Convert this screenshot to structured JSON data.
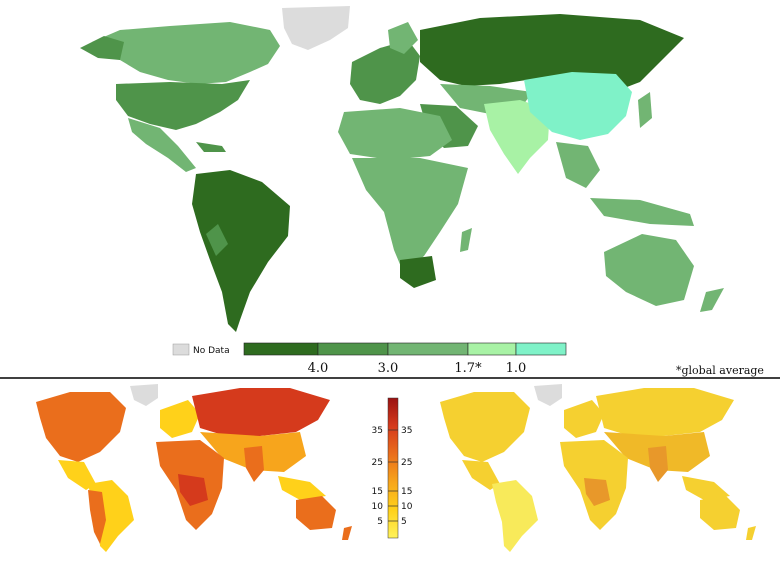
{
  "top_map": {
    "legend": {
      "no_data_label": "No Data",
      "no_data_color": "#dcdcdc",
      "classes": [
        {
          "color": "#2e6b1f"
        },
        {
          "color": "#4f944a"
        },
        {
          "color": "#72b573"
        },
        {
          "color": "#a8f2a5"
        },
        {
          "color": "#7ff2c8"
        }
      ],
      "tick_labels": [
        "4.0",
        "3.0",
        "1.7*",
        "1.0"
      ]
    },
    "footnote": "*global average"
  },
  "bottom_left_map": {
    "legend": {
      "stops": [
        "#fff35c",
        "#ffd11a",
        "#f7a51c",
        "#ea6e1c",
        "#d53a1c",
        "#9b1212"
      ],
      "ticks": [
        "35",
        "25",
        "15",
        "10",
        "5"
      ]
    }
  },
  "bottom_right_map": {
    "palette": [
      "#f5d030",
      "#f0b928",
      "#e8982a",
      "#f8ea5a"
    ]
  },
  "colors": {
    "divider": "#000000",
    "no_data": "#dcdcdc"
  }
}
